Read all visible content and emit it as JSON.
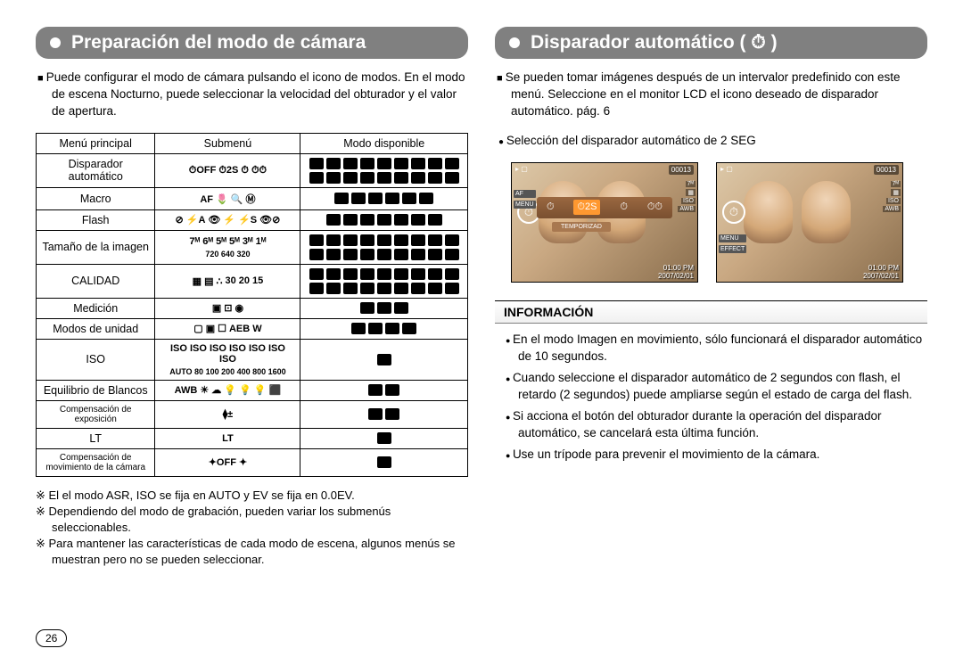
{
  "page_number": "26",
  "left": {
    "title": "Preparación del modo de cámara",
    "intro": "Puede configurar el modo de cámara pulsando el icono de modos. En el modo de escena Nocturno, puede seleccionar la velocidad del obturador y el valor de apertura.",
    "table": {
      "headers": [
        "Menú principal",
        "Submenú",
        "Modo disponible"
      ],
      "rows": [
        {
          "label": "Disparador automático",
          "submenu_syms": [
            "⏱OFF",
            "⏱2S",
            "⏱",
            "⏱⏱"
          ],
          "mode_boxes": 18
        },
        {
          "label": "Macro",
          "submenu_text": "AF  🌷  🔍  Ⓜ",
          "mode_boxes": 6
        },
        {
          "label": "Flash",
          "submenu_syms": [
            "⊘",
            "⚡A",
            "👁",
            "⚡",
            "⚡S",
            "👁⊘"
          ],
          "mode_boxes": 7
        },
        {
          "label": "Tamaño de la imagen",
          "submenu_text": "7ᴹ 6ᴹ 5ᴹ 5ᴹ 3ᴹ 1ᴹ",
          "submenu_sub": "720 640 320",
          "mode_boxes": 18
        },
        {
          "label": "CALIDAD",
          "submenu_syms": [
            "▦",
            "▤",
            "∴",
            "30",
            "20",
            "15"
          ],
          "mode_boxes": 18
        },
        {
          "label": "Medición",
          "submenu_syms": [
            "▣",
            "⊡",
            "◉"
          ],
          "mode_boxes": 3
        },
        {
          "label": "Modos de unidad",
          "submenu_syms": [
            "▢",
            "▣",
            "☐",
            "AEB",
            "W"
          ],
          "mode_boxes": 4
        },
        {
          "label": "ISO",
          "submenu_text": "ISO ISO ISO ISO ISO ISO ISO",
          "submenu_sub": "AUTO 80 100 200 400 800 1600",
          "mode_boxes": 1
        },
        {
          "label": "Equilibrio de Blancos",
          "submenu_text": "AWB ☀ ☁ 💡 💡 💡 ⬛",
          "mode_boxes": 2
        },
        {
          "label": "Compensación de exposición",
          "submenu_syms": [
            "⧫±"
          ],
          "mode_boxes": 2
        },
        {
          "label": "LT",
          "submenu_text": "LT",
          "mode_boxes": 1
        },
        {
          "label": "Compensación de movimiento de la cámara",
          "submenu_syms": [
            "✦OFF",
            "✦"
          ],
          "mode_boxes": 1
        }
      ]
    },
    "footnotes": [
      "El el modo ASR, ISO se fija en AUTO y EV se fija en 0.0EV.",
      "Dependiendo del modo de grabación, pueden variar los submenús seleccionables.",
      "Para mantener las características de cada modo de escena, algunos menús se muestran pero no se pueden seleccionar."
    ]
  },
  "right": {
    "title": "Disparador automático ( ⏱ )",
    "intro": "Se pueden tomar imágenes después de un intervalor predefinido con este menú. Seleccione en el monitor LCD el icono deseado de disparador automático. pág. 6",
    "selection_label": "Selección del disparador automático de 2 SEG",
    "lcd": {
      "counter": "00013",
      "badges": [
        "7ᴹ",
        "▦",
        "ISO",
        "AWB"
      ],
      "left_badges": [
        "AF",
        "MENU",
        "EFFECT"
      ],
      "time": "01:00 PM",
      "date": "2007/02/01",
      "temporizad": "TEMPORIZAD",
      "timer_options": [
        "⏱",
        "⏱2S",
        "⏱",
        "⏱⏱"
      ]
    },
    "info_title": "INFORMACIÓN",
    "info_items": [
      "En el modo Imagen en movimiento, sólo funcionará el disparador automático de 10 segundos.",
      "Cuando seleccione el disparador automático de 2 segundos con flash, el retardo (2 segundos) puede ampliarse según el estado de carga del flash.",
      "Si acciona el botón del obturador durante la operación del disparador automático, se cancelará esta última función.",
      "Use un trípode para prevenir el movimiento de la cámara."
    ]
  }
}
